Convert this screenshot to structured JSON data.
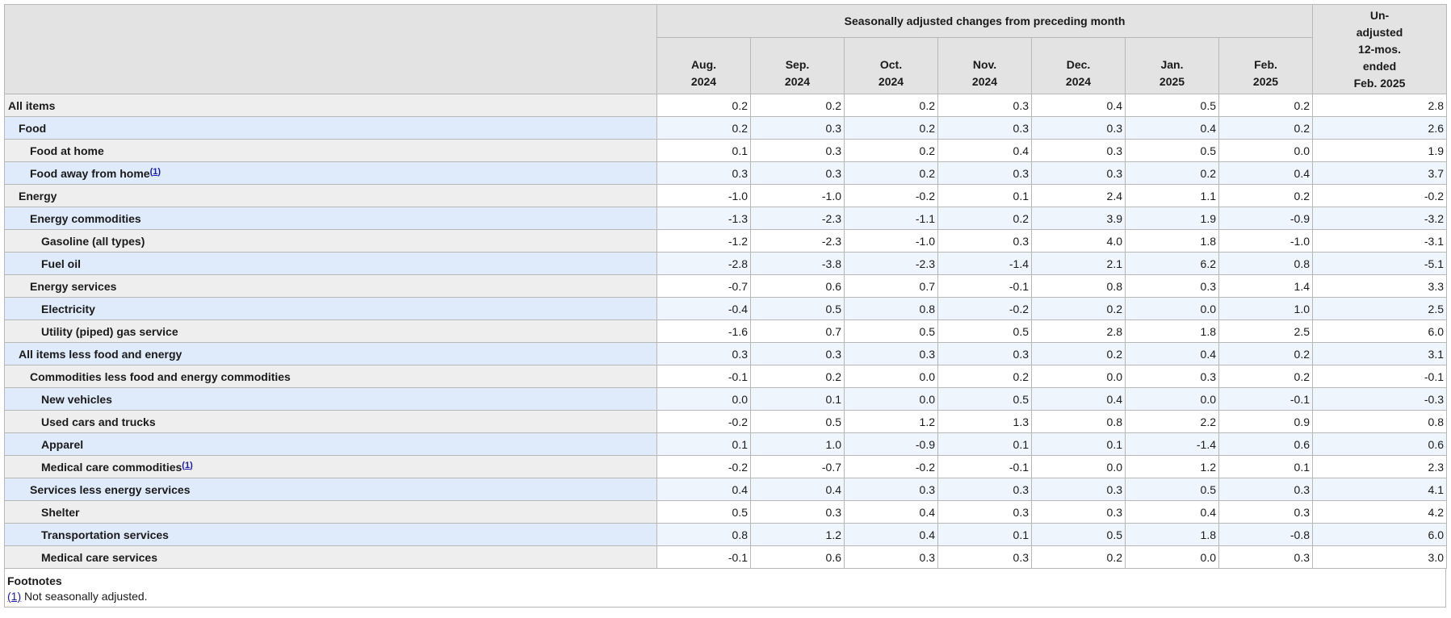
{
  "header": {
    "group_title": "Seasonally adjusted changes from preceding month",
    "months": [
      {
        "month": "Aug.",
        "year": "2024"
      },
      {
        "month": "Sep.",
        "year": "2024"
      },
      {
        "month": "Oct.",
        "year": "2024"
      },
      {
        "month": "Nov.",
        "year": "2024"
      },
      {
        "month": "Dec.",
        "year": "2024"
      },
      {
        "month": "Jan.",
        "year": "2025"
      },
      {
        "month": "Feb.",
        "year": "2025"
      }
    ],
    "unadjusted_lines": [
      "Un-",
      "adjusted",
      "12-mos.",
      "ended",
      "Feb. 2025"
    ]
  },
  "rows": [
    {
      "label": "All items",
      "level": 0,
      "values": [
        "0.2",
        "0.2",
        "0.2",
        "0.3",
        "0.4",
        "0.5",
        "0.2",
        "2.8"
      ]
    },
    {
      "label": "Food",
      "level": 1,
      "values": [
        "0.2",
        "0.3",
        "0.2",
        "0.3",
        "0.3",
        "0.4",
        "0.2",
        "2.6"
      ]
    },
    {
      "label": "Food at home",
      "level": 2,
      "values": [
        "0.1",
        "0.3",
        "0.2",
        "0.4",
        "0.3",
        "0.5",
        "0.0",
        "1.9"
      ]
    },
    {
      "label": "Food away from home",
      "level": 2,
      "footnote": "1",
      "values": [
        "0.3",
        "0.3",
        "0.2",
        "0.3",
        "0.3",
        "0.2",
        "0.4",
        "3.7"
      ]
    },
    {
      "label": "Energy",
      "level": 1,
      "values": [
        "-1.0",
        "-1.0",
        "-0.2",
        "0.1",
        "2.4",
        "1.1",
        "0.2",
        "-0.2"
      ]
    },
    {
      "label": "Energy commodities",
      "level": 2,
      "values": [
        "-1.3",
        "-2.3",
        "-1.1",
        "0.2",
        "3.9",
        "1.9",
        "-0.9",
        "-3.2"
      ]
    },
    {
      "label": "Gasoline (all types)",
      "level": 3,
      "values": [
        "-1.2",
        "-2.3",
        "-1.0",
        "0.3",
        "4.0",
        "1.8",
        "-1.0",
        "-3.1"
      ]
    },
    {
      "label": "Fuel oil",
      "level": 3,
      "values": [
        "-2.8",
        "-3.8",
        "-2.3",
        "-1.4",
        "2.1",
        "6.2",
        "0.8",
        "-5.1"
      ]
    },
    {
      "label": "Energy services",
      "level": 2,
      "values": [
        "-0.7",
        "0.6",
        "0.7",
        "-0.1",
        "0.8",
        "0.3",
        "1.4",
        "3.3"
      ]
    },
    {
      "label": "Electricity",
      "level": 3,
      "values": [
        "-0.4",
        "0.5",
        "0.8",
        "-0.2",
        "0.2",
        "0.0",
        "1.0",
        "2.5"
      ]
    },
    {
      "label": "Utility (piped) gas service",
      "level": 3,
      "values": [
        "-1.6",
        "0.7",
        "0.5",
        "0.5",
        "2.8",
        "1.8",
        "2.5",
        "6.0"
      ]
    },
    {
      "label": "All items less food and energy",
      "level": 1,
      "values": [
        "0.3",
        "0.3",
        "0.3",
        "0.3",
        "0.2",
        "0.4",
        "0.2",
        "3.1"
      ]
    },
    {
      "label": "Commodities less food and energy commodities",
      "level": 2,
      "values": [
        "-0.1",
        "0.2",
        "0.0",
        "0.2",
        "0.0",
        "0.3",
        "0.2",
        "-0.1"
      ]
    },
    {
      "label": "New vehicles",
      "level": 3,
      "values": [
        "0.0",
        "0.1",
        "0.0",
        "0.5",
        "0.4",
        "0.0",
        "-0.1",
        "-0.3"
      ]
    },
    {
      "label": "Used cars and trucks",
      "level": 3,
      "values": [
        "-0.2",
        "0.5",
        "1.2",
        "1.3",
        "0.8",
        "2.2",
        "0.9",
        "0.8"
      ]
    },
    {
      "label": "Apparel",
      "level": 3,
      "values": [
        "0.1",
        "1.0",
        "-0.9",
        "0.1",
        "0.1",
        "-1.4",
        "0.6",
        "0.6"
      ]
    },
    {
      "label": "Medical care commodities",
      "level": 3,
      "footnote": "1",
      "values": [
        "-0.2",
        "-0.7",
        "-0.2",
        "-0.1",
        "0.0",
        "1.2",
        "0.1",
        "2.3"
      ]
    },
    {
      "label": "Services less energy services",
      "level": 2,
      "values": [
        "0.4",
        "0.4",
        "0.3",
        "0.3",
        "0.3",
        "0.5",
        "0.3",
        "4.1"
      ]
    },
    {
      "label": "Shelter",
      "level": 3,
      "values": [
        "0.5",
        "0.3",
        "0.4",
        "0.3",
        "0.3",
        "0.4",
        "0.3",
        "4.2"
      ]
    },
    {
      "label": "Transportation services",
      "level": 3,
      "values": [
        "0.8",
        "1.2",
        "0.4",
        "0.1",
        "0.5",
        "1.8",
        "-0.8",
        "6.0"
      ]
    },
    {
      "label": "Medical care services",
      "level": 3,
      "values": [
        "-0.1",
        "0.6",
        "0.3",
        "0.3",
        "0.2",
        "0.0",
        "0.3",
        "3.0"
      ]
    }
  ],
  "footnotes": {
    "title": "Footnotes",
    "items": [
      {
        "ref": "(1)",
        "text": " Not seasonally adjusted."
      }
    ]
  },
  "colors": {
    "header_bg": "#e3e3e3",
    "row_label_odd": "#eeeeee",
    "row_label_even": "#dfebfb",
    "row_value_even": "#eef5fd",
    "link": "#1a1aa6"
  }
}
